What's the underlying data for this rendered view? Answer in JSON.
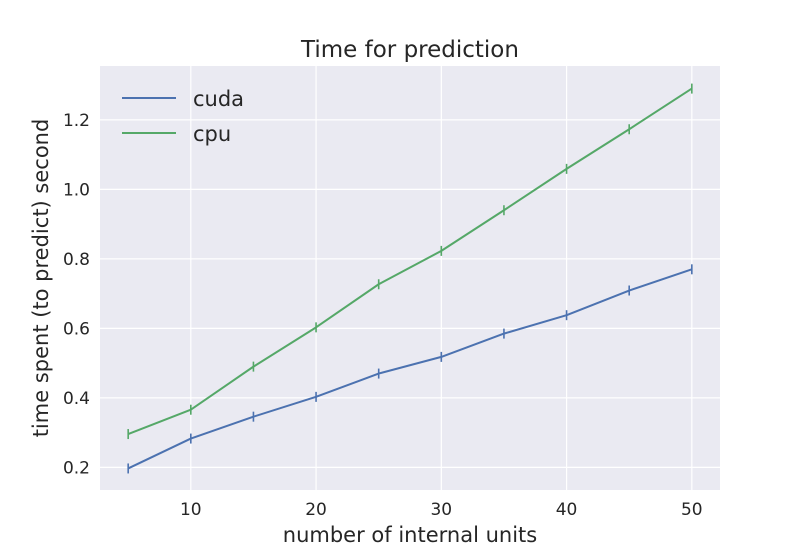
{
  "chart_data": {
    "type": "line",
    "title": "Time for prediction",
    "xlabel": "number of internal units",
    "ylabel": "time spent (to predict) second",
    "x": [
      5,
      10,
      15,
      20,
      25,
      30,
      35,
      40,
      45,
      50
    ],
    "xticks": [
      10,
      20,
      30,
      40,
      50
    ],
    "yticks": [
      0.2,
      0.4,
      0.6,
      0.8,
      1.0,
      1.2
    ],
    "xlim": [
      2.75,
      52.25
    ],
    "ylim": [
      0.135,
      1.355
    ],
    "grid": true,
    "legend_position": "top-left",
    "background_color": "#EAEAF2",
    "series": [
      {
        "name": "cuda",
        "color": "#4C72B0",
        "values": [
          0.197,
          0.283,
          0.346,
          0.403,
          0.47,
          0.518,
          0.585,
          0.638,
          0.709,
          0.77
        ]
      },
      {
        "name": "cpu",
        "color": "#55A868",
        "values": [
          0.296,
          0.366,
          0.49,
          0.603,
          0.727,
          0.823,
          0.94,
          1.059,
          1.173,
          1.29
        ]
      }
    ]
  }
}
